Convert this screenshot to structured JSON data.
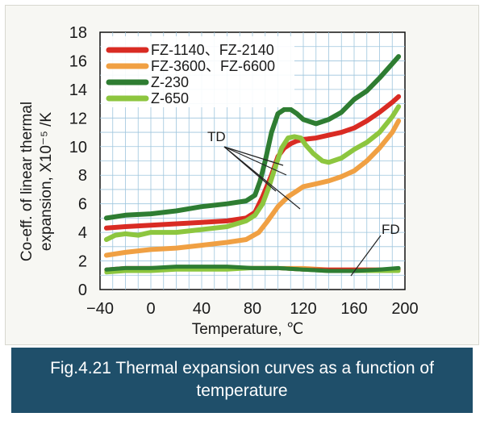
{
  "caption": {
    "line1": "Fig.4.21 Thermal expansion curves  as a function of",
    "line2": "temperature"
  },
  "chart_data": {
    "type": "line",
    "xlabel": "Temperature, ℃",
    "ylabel_line1": "Co-eff. of linear thermal",
    "ylabel_line2": "expansion, X10⁻⁵ /K",
    "xlim": [
      -40,
      200
    ],
    "ylim": [
      0,
      18
    ],
    "xticks": [
      -40,
      0,
      40,
      80,
      120,
      160,
      200
    ],
    "xtick_labels": [
      "−40",
      "0",
      "40",
      "80",
      "120",
      "160",
      "200"
    ],
    "yticks": [
      0,
      2,
      4,
      6,
      8,
      10,
      12,
      14,
      16,
      18
    ],
    "grid": true,
    "legend_position": "top-left",
    "annotations": [
      {
        "text": "TD",
        "points_to": "four curves near 100℃"
      },
      {
        "text": "FD",
        "points_to": "flat curves near 130℃"
      }
    ],
    "series": [
      {
        "name": "FZ-1140、FZ-2140",
        "color": "#d92b23",
        "td": {
          "x": [
            -35,
            -20,
            0,
            20,
            40,
            60,
            75,
            82,
            88,
            95,
            100,
            105,
            110,
            115,
            120,
            130,
            140,
            150,
            160,
            170,
            180,
            190,
            195
          ],
          "y": [
            4.3,
            4.4,
            4.5,
            4.6,
            4.7,
            4.8,
            5.0,
            5.4,
            6.5,
            8.0,
            9.3,
            9.9,
            10.2,
            10.4,
            10.5,
            10.6,
            10.8,
            11.0,
            11.3,
            11.8,
            12.4,
            13.1,
            13.5
          ]
        },
        "fd": {
          "x": [
            -35,
            -20,
            0,
            20,
            40,
            60,
            80,
            100,
            120,
            140,
            160,
            180,
            195
          ],
          "y": [
            1.4,
            1.5,
            1.5,
            1.5,
            1.5,
            1.5,
            1.5,
            1.5,
            1.4,
            1.4,
            1.4,
            1.4,
            1.4
          ]
        }
      },
      {
        "name": "FZ-3600、FZ-6600",
        "color": "#f0a043",
        "td": {
          "x": [
            -35,
            -20,
            0,
            20,
            40,
            60,
            75,
            85,
            92,
            100,
            108,
            115,
            120,
            130,
            140,
            150,
            160,
            170,
            180,
            190,
            195
          ],
          "y": [
            2.4,
            2.6,
            2.8,
            2.9,
            3.1,
            3.3,
            3.5,
            4.0,
            4.8,
            5.8,
            6.5,
            6.9,
            7.2,
            7.4,
            7.6,
            7.9,
            8.3,
            9.0,
            9.9,
            11.0,
            11.8
          ]
        },
        "fd": {
          "x": [
            -35,
            -20,
            0,
            20,
            40,
            60,
            80,
            100,
            120,
            140,
            160,
            180,
            195
          ],
          "y": [
            1.3,
            1.4,
            1.4,
            1.5,
            1.5,
            1.5,
            1.5,
            1.5,
            1.5,
            1.4,
            1.4,
            1.4,
            1.4
          ]
        }
      },
      {
        "name": "Z-230",
        "color": "#2e7d32",
        "td": {
          "x": [
            -35,
            -20,
            0,
            20,
            40,
            60,
            75,
            82,
            86,
            90,
            95,
            100,
            105,
            110,
            115,
            120,
            130,
            140,
            150,
            160,
            170,
            180,
            190,
            195
          ],
          "y": [
            5.0,
            5.2,
            5.3,
            5.5,
            5.8,
            6.0,
            6.2,
            6.6,
            7.6,
            9.0,
            11.0,
            12.3,
            12.6,
            12.6,
            12.3,
            11.9,
            11.6,
            11.9,
            12.4,
            13.3,
            13.9,
            14.8,
            15.8,
            16.3
          ]
        },
        "fd": {
          "x": [
            -35,
            -20,
            0,
            20,
            40,
            60,
            80,
            100,
            120,
            140,
            160,
            180,
            195
          ],
          "y": [
            1.4,
            1.5,
            1.5,
            1.6,
            1.6,
            1.6,
            1.5,
            1.5,
            1.4,
            1.3,
            1.3,
            1.4,
            1.5
          ]
        }
      },
      {
        "name": "Z-650",
        "color": "#8dc63f",
        "td": {
          "x": [
            -35,
            -28,
            -20,
            -10,
            0,
            20,
            40,
            60,
            75,
            82,
            88,
            93,
            98,
            103,
            108,
            113,
            118,
            122,
            128,
            135,
            140,
            150,
            160,
            170,
            180,
            190,
            195
          ],
          "y": [
            3.5,
            3.8,
            3.9,
            3.8,
            4.0,
            4.0,
            4.2,
            4.4,
            4.8,
            5.2,
            6.0,
            7.2,
            8.6,
            9.9,
            10.6,
            10.7,
            10.6,
            10.1,
            9.5,
            9.0,
            8.9,
            9.2,
            9.8,
            10.3,
            11.0,
            12.1,
            12.8
          ]
        },
        "fd": {
          "x": [
            -35,
            -20,
            0,
            20,
            40,
            60,
            80,
            100,
            120,
            140,
            160,
            180,
            195
          ],
          "y": [
            1.2,
            1.3,
            1.3,
            1.4,
            1.4,
            1.4,
            1.5,
            1.5,
            1.4,
            1.3,
            1.3,
            1.3,
            1.3
          ]
        }
      }
    ]
  }
}
